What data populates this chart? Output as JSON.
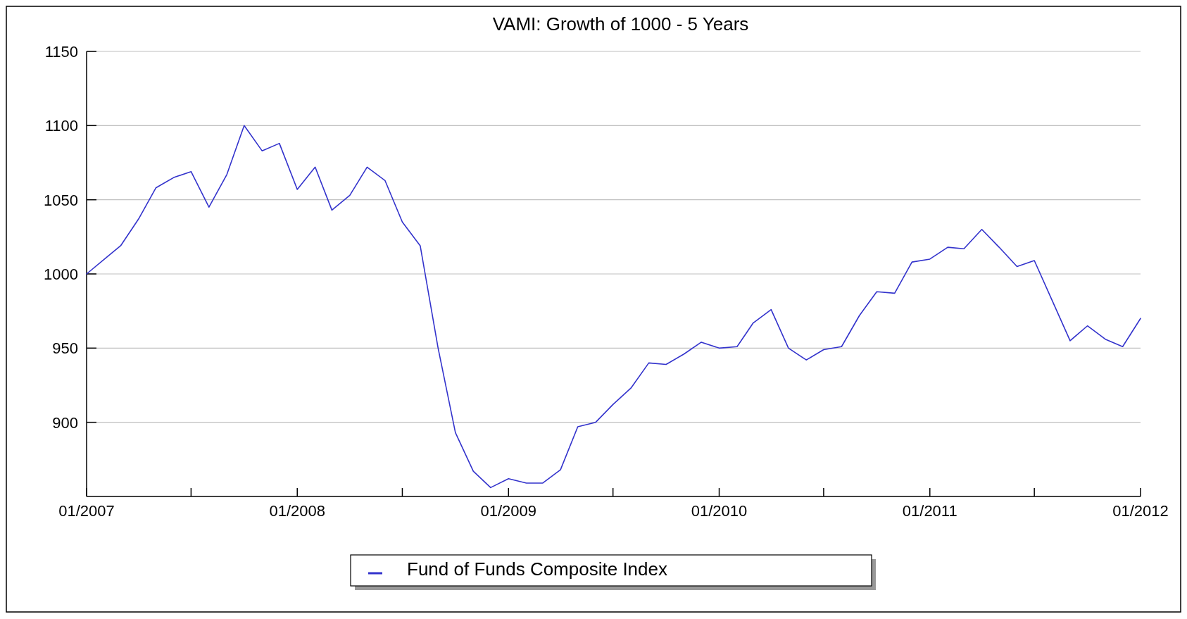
{
  "chart_data": {
    "type": "line",
    "title": "VAMI: Growth of 1000 - 5 Years",
    "x": [
      "2007-01",
      "2007-02",
      "2007-03",
      "2007-04",
      "2007-05",
      "2007-06",
      "2007-07",
      "2007-08",
      "2007-09",
      "2007-10",
      "2007-11",
      "2007-12",
      "2008-01",
      "2008-02",
      "2008-03",
      "2008-04",
      "2008-05",
      "2008-06",
      "2008-07",
      "2008-08",
      "2008-09",
      "2008-10",
      "2008-11",
      "2008-12",
      "2009-01",
      "2009-02",
      "2009-03",
      "2009-04",
      "2009-05",
      "2009-06",
      "2009-07",
      "2009-08",
      "2009-09",
      "2009-10",
      "2009-11",
      "2009-12",
      "2010-01",
      "2010-02",
      "2010-03",
      "2010-04",
      "2010-05",
      "2010-06",
      "2010-07",
      "2010-08",
      "2010-09",
      "2010-10",
      "2010-11",
      "2010-12",
      "2011-01",
      "2011-02",
      "2011-03",
      "2011-04",
      "2011-05",
      "2011-06",
      "2011-07",
      "2011-08",
      "2011-09",
      "2011-10",
      "2011-11",
      "2011-12",
      "2012-01"
    ],
    "series": [
      {
        "name": "Fund of Funds Composite Index",
        "color": "#3333cc",
        "values": [
          1000,
          1010,
          1019,
          1037,
          1058,
          1065,
          1069,
          1045,
          1067,
          1100,
          1083,
          1088,
          1057,
          1072,
          1043,
          1053,
          1072,
          1063,
          1035,
          1019,
          950,
          893,
          867,
          856,
          862,
          859,
          859,
          868,
          897,
          900,
          912,
          923,
          940,
          939,
          946,
          954,
          950,
          951,
          967,
          976,
          950,
          942,
          949,
          951,
          972,
          988,
          987,
          1008,
          1010,
          1018,
          1017,
          1030,
          1018,
          1005,
          1009,
          982,
          955,
          965,
          956,
          951,
          970
        ]
      }
    ],
    "xlim": [
      "2007-01",
      "2012-01"
    ],
    "xticks": [
      {
        "value": "2007-01",
        "label": "01/2007"
      },
      {
        "value": "2007-07",
        "label": null
      },
      {
        "value": "2008-01",
        "label": "01/2008"
      },
      {
        "value": "2008-07",
        "label": null
      },
      {
        "value": "2009-01",
        "label": "01/2009"
      },
      {
        "value": "2009-07",
        "label": null
      },
      {
        "value": "2010-01",
        "label": "01/2010"
      },
      {
        "value": "2010-07",
        "label": null
      },
      {
        "value": "2011-01",
        "label": "01/2011"
      },
      {
        "value": "2011-07",
        "label": null
      },
      {
        "value": "2012-01",
        "label": "01/2012"
      }
    ],
    "ylim": [
      850,
      1150
    ],
    "yticks": [
      900,
      950,
      1000,
      1050,
      1100,
      1150
    ],
    "grid": "y",
    "legend": "bottom",
    "marker": "none",
    "line_style": "solid"
  }
}
